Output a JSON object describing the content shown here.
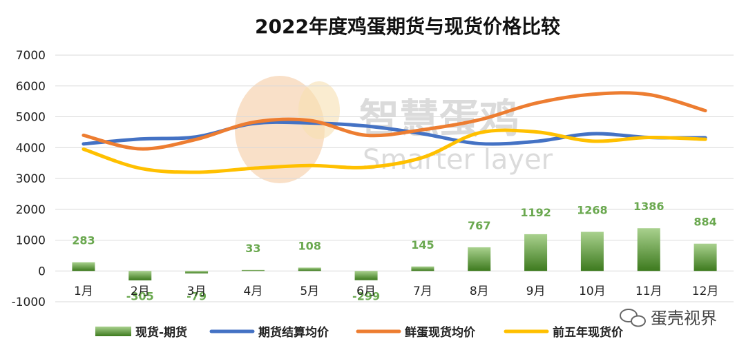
{
  "chart_data": {
    "type": "bar",
    "title": "2022年度鸡蛋期货与现货价格比较",
    "categories": [
      "1月",
      "2月",
      "3月",
      "4月",
      "5月",
      "6月",
      "7月",
      "8月",
      "9月",
      "10月",
      "11月",
      "12月"
    ],
    "ylim": [
      -1000,
      7000
    ],
    "yticks": [
      7000,
      6000,
      5000,
      4000,
      3000,
      2000,
      1000,
      0,
      -1000
    ],
    "grid": true,
    "legend_position": "bottom",
    "series": [
      {
        "name": "现货-期货",
        "kind": "bar",
        "color": "#70ad47",
        "values": [
          283,
          -305,
          -79,
          33,
          108,
          -299,
          145,
          767,
          1192,
          1268,
          1386,
          884
        ],
        "labels": [
          "283",
          "-305",
          "-79",
          "33",
          "108",
          "-299",
          "145",
          "767",
          "1192",
          "1268",
          "1386",
          "884"
        ]
      },
      {
        "name": "期货结算均价",
        "kind": "line",
        "color": "#4472c4",
        "values": [
          4120,
          4280,
          4350,
          4780,
          4800,
          4700,
          4450,
          4130,
          4200,
          4450,
          4330,
          4320
        ]
      },
      {
        "name": "鲜蛋现货均价",
        "kind": "line",
        "color": "#ed7d31",
        "values": [
          4400,
          3960,
          4270,
          4820,
          4880,
          4400,
          4580,
          4900,
          5440,
          5730,
          5720,
          5200
        ]
      },
      {
        "name": "前五年现货价",
        "kind": "line",
        "color": "#ffc000",
        "values": [
          3950,
          3330,
          3200,
          3330,
          3420,
          3360,
          3680,
          4480,
          4510,
          4210,
          4330,
          4270
        ]
      }
    ]
  },
  "watermark": {
    "main": "智慧蛋鸡",
    "sub": "Smarter layer"
  },
  "brand": {
    "text": "蛋壳视界"
  }
}
